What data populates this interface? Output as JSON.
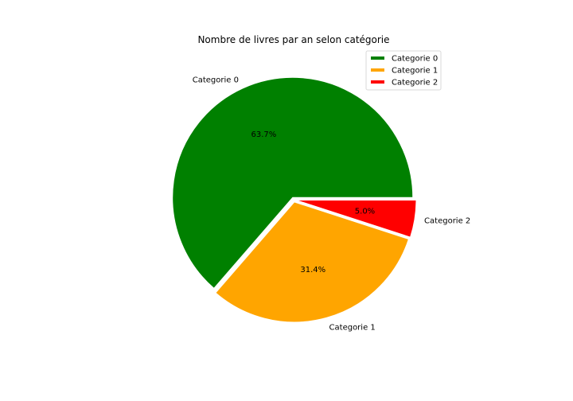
{
  "chart_data": {
    "type": "pie",
    "title": "Nombre de livres par an selon catégorie",
    "categories": [
      "Categorie 0",
      "Categorie 1",
      "Categorie 2"
    ],
    "values": [
      63.7,
      31.4,
      5.0
    ],
    "percent_labels": [
      "63.7%",
      "31.4%",
      "5.0%"
    ],
    "colors": [
      "#008000",
      "#ffa500",
      "#ff0000"
    ],
    "start_angle_deg": 0,
    "direction": "counterclockwise",
    "legend": {
      "placement": "top-right",
      "entries": [
        "Categorie 0",
        "Categorie 1",
        "Categorie 2"
      ]
    }
  }
}
